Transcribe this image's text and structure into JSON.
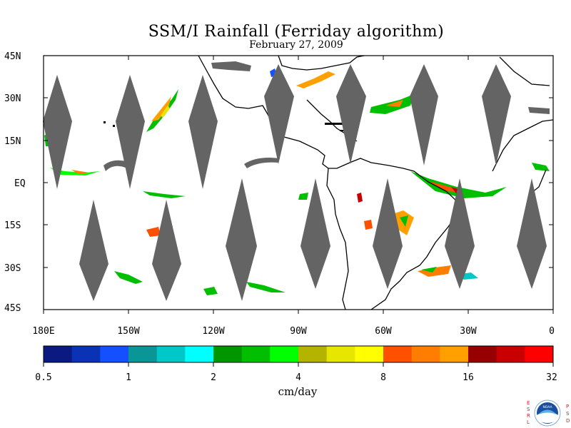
{
  "header": {
    "title": "SSM/I Rainfall (Ferriday algorithm)",
    "date": "February 27, 2009"
  },
  "map": {
    "lat_labels": [
      "45N",
      "30N",
      "15N",
      "EQ",
      "15S",
      "30S",
      "45S"
    ],
    "lon_labels": [
      "180E",
      "150W",
      "120W",
      "90W",
      "60W",
      "30W",
      "0"
    ],
    "background": "#ffffff",
    "coast_color": "#000000",
    "missing_color": "#646464"
  },
  "colorbar": {
    "colors": [
      "#0a1a80",
      "#0a32b4",
      "#1450ff",
      "#0a9696",
      "#00c8c8",
      "#00ffff",
      "#009600",
      "#00be00",
      "#00ff00",
      "#b4b400",
      "#e6e600",
      "#ffff00",
      "#ff5000",
      "#ff7d00",
      "#ffa000",
      "#960000",
      "#c80000",
      "#ff0000"
    ],
    "tick_labels": [
      "0.5",
      "1",
      "2",
      "4",
      "8",
      "16",
      "32"
    ],
    "units": "cm/day"
  },
  "logo": {
    "left_text": "ESRL",
    "right_text": "PSD",
    "center_text": "NOAA"
  }
}
